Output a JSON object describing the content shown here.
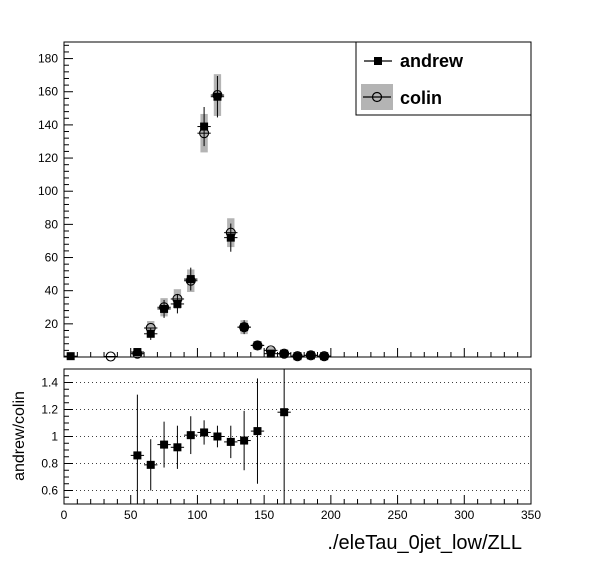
{
  "chart_data": [
    {
      "type": "scatter",
      "panel": "main",
      "xlim": [
        0,
        350
      ],
      "ylim": [
        0,
        190
      ],
      "yticks": [
        20,
        40,
        60,
        80,
        100,
        120,
        140,
        160,
        180
      ],
      "bin_width": 10,
      "legend": {
        "position": "top-right",
        "entries": [
          "andrew",
          "colin"
        ]
      },
      "series": [
        {
          "name": "andrew",
          "marker": "filled-square",
          "x": [
            5,
            55,
            65,
            75,
            85,
            95,
            105,
            115,
            125,
            135,
            145,
            155,
            165,
            175,
            185,
            195
          ],
          "values": [
            0.5,
            3,
            14,
            29,
            32,
            47,
            139,
            157,
            72,
            18,
            7,
            2,
            2,
            0.5,
            1,
            0.5
          ],
          "errors": [
            0.7,
            1.7,
            3.7,
            5.4,
            5.7,
            6.9,
            11.8,
            12.5,
            8.5,
            4.2,
            2.6,
            1.4,
            1.4,
            0.7,
            1,
            0.7
          ]
        },
        {
          "name": "colin",
          "marker": "open-circle",
          "band": "gray",
          "x": [
            35,
            55,
            65,
            75,
            85,
            95,
            105,
            115,
            125,
            135,
            145,
            155,
            165,
            175,
            185,
            195
          ],
          "values": [
            0.3,
            2,
            17.5,
            30,
            35,
            46,
            135,
            158,
            75,
            18,
            7,
            4,
            2,
            0.5,
            1,
            0.5
          ],
          "errors": [
            0.5,
            1.4,
            4.2,
            5.5,
            5.9,
            6.8,
            11.6,
            12.6,
            8.7,
            4.2,
            2.6,
            2,
            1.4,
            0.7,
            1,
            0.7
          ]
        }
      ]
    },
    {
      "type": "scatter",
      "panel": "ratio",
      "ylabel": "andrew/colin",
      "xlabel": "./eleTau_0jet_low/ZLL",
      "xlim": [
        0,
        350
      ],
      "ylim": [
        0.5,
        1.5
      ],
      "yticks": [
        0.6,
        0.8,
        1,
        1.2,
        1.4
      ],
      "xticks": [
        0,
        50,
        100,
        150,
        200,
        250,
        300,
        350
      ],
      "grid": "horizontal-dotted",
      "series": [
        {
          "name": "andrew/colin",
          "x": [
            55,
            65,
            75,
            85,
            95,
            105,
            115,
            125,
            135,
            145,
            165
          ],
          "values": [
            0.86,
            0.79,
            0.94,
            0.92,
            1.01,
            1.03,
            1.0,
            0.96,
            0.97,
            1.04,
            1.18
          ],
          "errors": [
            0.45,
            0.19,
            0.17,
            0.16,
            0.14,
            0.09,
            0.08,
            0.12,
            0.22,
            0.39,
            0.8
          ]
        }
      ]
    }
  ],
  "yticklabels_main": [
    "20",
    "40",
    "60",
    "80",
    "100",
    "120",
    "140",
    "160",
    "180"
  ],
  "yticklabels_ratio": [
    "0.6",
    "0.8",
    "1",
    "1.2",
    "1.4"
  ],
  "xticklabels": [
    "0",
    "50",
    "100",
    "150",
    "200",
    "250",
    "300",
    "350"
  ]
}
